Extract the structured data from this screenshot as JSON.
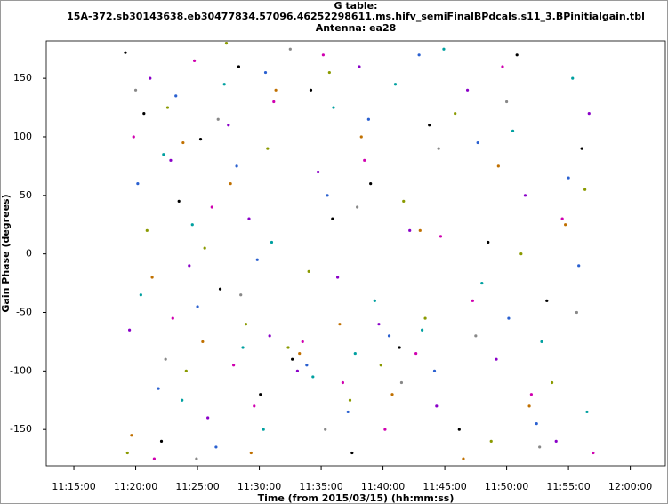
{
  "chart_data": {
    "type": "scatter",
    "title": [
      "G table:",
      "15A-372.sb30143638.eb30477834.57096.46252298611.ms.hifv_semiFinalBPdcals.s11_3.BPinitialgain.tbl",
      "Antenna: ea28"
    ],
    "xlabel": "Time (from 2015/03/15) (hh:mm:ss)",
    "ylabel": "Gain Phase (degrees)",
    "xlim": [
      "11:12:46",
      "12:02:50"
    ],
    "xticks": [
      "11:15:00",
      "11:20:00",
      "11:25:00",
      "11:30:00",
      "11:35:00",
      "11:40:00",
      "11:45:00",
      "11:50:00",
      "11:55:00",
      "12:00:00"
    ],
    "ylim": [
      -181,
      182
    ],
    "yticks": [
      -150,
      -100,
      -50,
      0,
      50,
      100,
      150
    ],
    "series": [
      {
        "color": "#000000",
        "x": [
          "11:19:10",
          "11:20:40",
          "11:22:05",
          "11:23:30",
          "11:25:15",
          "11:26:50",
          "11:28:20",
          "11:30:05",
          "11:32:40",
          "11:34:10",
          "11:35:55",
          "11:37:30",
          "11:39:00",
          "11:41:20",
          "11:43:45",
          "11:46:10",
          "11:48:30",
          "11:50:50",
          "11:53:15",
          "11:56:05"
        ],
        "values": [
          172,
          120,
          -160,
          45,
          98,
          -30,
          160,
          -120,
          -90,
          140,
          30,
          -170,
          60,
          -80,
          110,
          -150,
          10,
          170,
          -40,
          90
        ]
      },
      {
        "color": "#8a00c8",
        "x": [
          "11:19:30",
          "11:21:10",
          "11:22:50",
          "11:24:20",
          "11:25:50",
          "11:27:30",
          "11:29:10",
          "11:30:50",
          "11:33:05",
          "11:34:45",
          "11:36:20",
          "11:38:05",
          "11:39:40",
          "11:42:10",
          "11:44:20",
          "11:46:50",
          "11:49:10",
          "11:51:30",
          "11:54:00",
          "11:56:40"
        ],
        "values": [
          -65,
          150,
          80,
          -10,
          -140,
          110,
          30,
          -70,
          -100,
          70,
          -20,
          160,
          -60,
          20,
          -130,
          140,
          -90,
          50,
          -160,
          120
        ]
      },
      {
        "color": "#d000b0",
        "x": [
          "11:19:50",
          "11:21:30",
          "11:23:00",
          "11:24:45",
          "11:26:10",
          "11:27:55",
          "11:29:35",
          "11:31:10",
          "11:33:30",
          "11:35:10",
          "11:36:45",
          "11:38:30",
          "11:40:10",
          "11:42:40",
          "11:44:40",
          "11:47:15",
          "11:49:40",
          "11:52:00",
          "11:54:30",
          "11:57:00"
        ],
        "values": [
          100,
          -175,
          -55,
          165,
          40,
          -95,
          -130,
          130,
          -75,
          170,
          -110,
          80,
          -150,
          -85,
          15,
          -40,
          160,
          -120,
          30,
          -170
        ]
      },
      {
        "color": "#2a60d0",
        "x": [
          "11:20:10",
          "11:21:50",
          "11:23:15",
          "11:25:00",
          "11:26:30",
          "11:28:10",
          "11:29:50",
          "11:30:30",
          "11:33:50",
          "11:35:30",
          "11:37:10",
          "11:38:50",
          "11:40:30",
          "11:42:55",
          "11:44:10",
          "11:47:40",
          "11:50:10",
          "11:52:25",
          "11:55:00",
          "11:55:50"
        ],
        "values": [
          60,
          -115,
          135,
          -45,
          -165,
          75,
          -5,
          155,
          -95,
          50,
          -135,
          115,
          -70,
          170,
          -100,
          95,
          -55,
          -145,
          65,
          -10
        ]
      },
      {
        "color": "#00a0a0",
        "x": [
          "11:20:25",
          "11:22:15",
          "11:23:45",
          "11:24:35",
          "11:27:10",
          "11:28:40",
          "11:30:20",
          "11:31:00",
          "11:34:20",
          "11:36:00",
          "11:37:45",
          "11:39:20",
          "11:41:00",
          "11:43:10",
          "11:44:55",
          "11:48:00",
          "11:50:30",
          "11:52:50",
          "11:55:20",
          "11:56:30"
        ],
        "values": [
          -35,
          85,
          -125,
          25,
          145,
          -80,
          -150,
          10,
          -105,
          125,
          -85,
          -40,
          145,
          -65,
          175,
          -25,
          105,
          -75,
          150,
          -135
        ]
      },
      {
        "color": "#8a9a00",
        "x": [
          "11:19:20",
          "11:20:55",
          "11:22:35",
          "11:24:05",
          "11:25:35",
          "11:27:20",
          "11:28:55",
          "11:30:40",
          "11:32:20",
          "11:34:00",
          "11:35:40",
          "11:37:20",
          "11:39:50",
          "11:41:40",
          "11:43:25",
          "11:45:50",
          "11:48:45",
          "11:51:10",
          "11:53:40",
          "11:56:20"
        ],
        "values": [
          -170,
          20,
          125,
          -100,
          5,
          180,
          -60,
          90,
          -80,
          -15,
          155,
          -125,
          -95,
          45,
          -55,
          120,
          -160,
          0,
          -110,
          55
        ]
      },
      {
        "color": "#c07000",
        "x": [
          "11:19:40",
          "11:21:20",
          "11:23:50",
          "11:25:25",
          "11:27:40",
          "11:29:20",
          "11:31:20",
          "11:33:15",
          "11:36:30",
          "11:38:15",
          "11:40:45",
          "11:43:00",
          "11:46:30",
          "11:49:20",
          "11:51:50",
          "11:54:45"
        ],
        "values": [
          -155,
          -20,
          95,
          -75,
          60,
          -170,
          140,
          -85,
          -60,
          100,
          -120,
          20,
          -175,
          75,
          -130,
          25
        ]
      },
      {
        "color": "#888888",
        "x": [
          "11:20:00",
          "11:22:25",
          "11:24:55",
          "11:26:40",
          "11:28:30",
          "11:32:30",
          "11:35:20",
          "11:37:55",
          "11:41:30",
          "11:44:30",
          "11:47:30",
          "11:50:00",
          "11:52:40",
          "11:55:40"
        ],
        "values": [
          140,
          -90,
          -175,
          115,
          -35,
          175,
          -150,
          40,
          -110,
          90,
          -70,
          130,
          -165,
          -50
        ]
      }
    ]
  }
}
